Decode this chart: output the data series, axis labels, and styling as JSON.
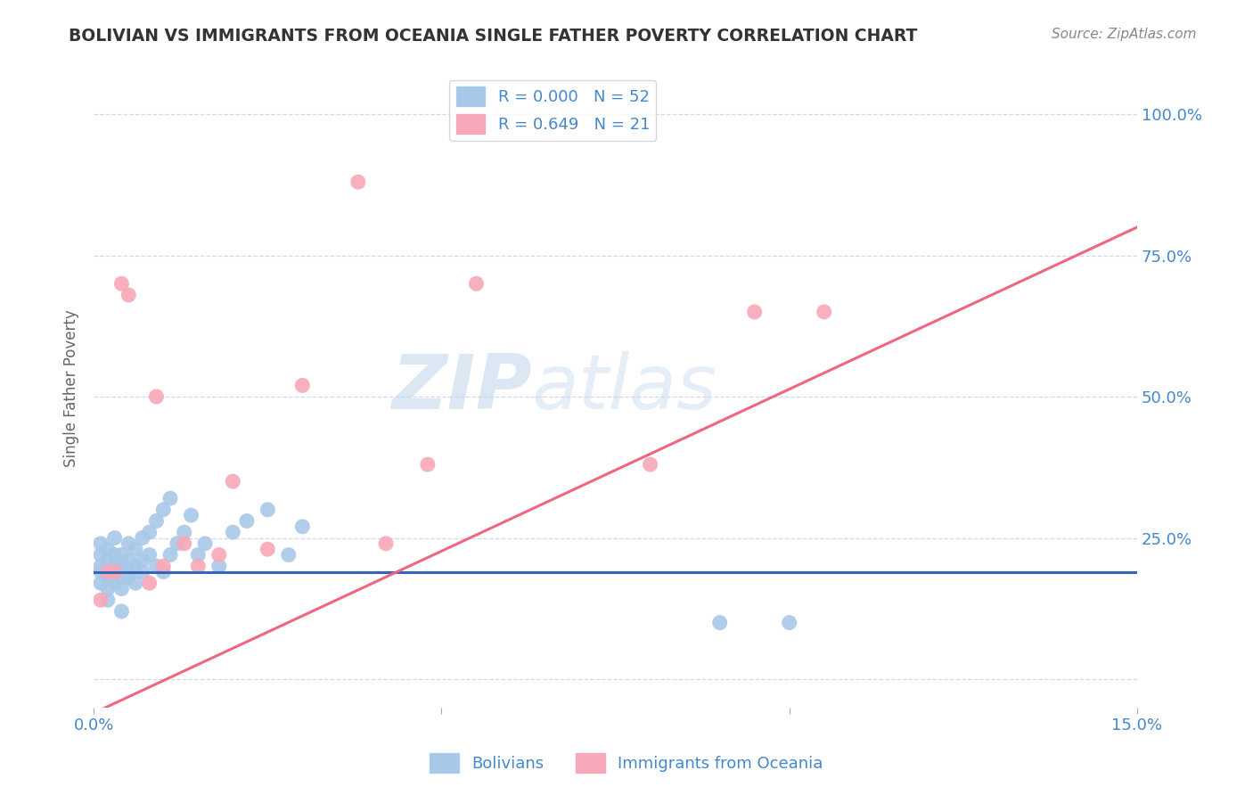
{
  "title": "BOLIVIAN VS IMMIGRANTS FROM OCEANIA SINGLE FATHER POVERTY CORRELATION CHART",
  "source": "Source: ZipAtlas.com",
  "ylabel": "Single Father Poverty",
  "xlim": [
    0.0,
    0.15
  ],
  "ylim": [
    -0.05,
    1.08
  ],
  "xticks": [
    0.0,
    0.05,
    0.1,
    0.15
  ],
  "xticklabels": [
    "0.0%",
    "",
    "",
    "15.0%"
  ],
  "yticks": [
    0.0,
    0.25,
    0.5,
    0.75,
    1.0
  ],
  "yticklabels": [
    "",
    "25.0%",
    "50.0%",
    "75.0%",
    "100.0%"
  ],
  "grid_color": "#d0d8f0",
  "background_color": "#ffffff",
  "watermark_text": "ZIPatlas",
  "legend_r1": "R = 0.000",
  "legend_n1": "N = 52",
  "legend_r2": "R = 0.649",
  "legend_n2": "N = 21",
  "bolivians_color": "#a8c8e8",
  "oceania_color": "#f8a8b8",
  "line_blue": "#3366bb",
  "line_pink": "#ee6680",
  "axis_color": "#4488cc",
  "title_color": "#333333",
  "source_color": "#888888",
  "blue_line_y": 0.19,
  "bolivians_x": [
    0.001,
    0.001,
    0.001,
    0.001,
    0.001,
    0.002,
    0.002,
    0.002,
    0.002,
    0.002,
    0.002,
    0.003,
    0.003,
    0.003,
    0.003,
    0.003,
    0.004,
    0.004,
    0.004,
    0.004,
    0.004,
    0.005,
    0.005,
    0.005,
    0.005,
    0.006,
    0.006,
    0.006,
    0.007,
    0.007,
    0.007,
    0.008,
    0.008,
    0.009,
    0.009,
    0.01,
    0.01,
    0.011,
    0.011,
    0.012,
    0.013,
    0.014,
    0.015,
    0.016,
    0.018,
    0.02,
    0.022,
    0.025,
    0.028,
    0.03,
    0.09,
    0.1
  ],
  "bolivians_y": [
    0.17,
    0.19,
    0.2,
    0.22,
    0.24,
    0.16,
    0.18,
    0.19,
    0.21,
    0.23,
    0.14,
    0.17,
    0.19,
    0.2,
    0.22,
    0.25,
    0.18,
    0.2,
    0.22,
    0.16,
    0.12,
    0.19,
    0.21,
    0.24,
    0.18,
    0.2,
    0.23,
    0.17,
    0.21,
    0.19,
    0.25,
    0.22,
    0.26,
    0.2,
    0.28,
    0.19,
    0.3,
    0.22,
    0.32,
    0.24,
    0.26,
    0.29,
    0.22,
    0.24,
    0.2,
    0.26,
    0.28,
    0.3,
    0.22,
    0.27,
    0.1,
    0.1
  ],
  "oceania_x": [
    0.001,
    0.002,
    0.003,
    0.004,
    0.005,
    0.008,
    0.009,
    0.01,
    0.013,
    0.015,
    0.018,
    0.02,
    0.025,
    0.03,
    0.038,
    0.042,
    0.048,
    0.055,
    0.08,
    0.095,
    0.105
  ],
  "oceania_y": [
    0.14,
    0.19,
    0.19,
    0.7,
    0.68,
    0.17,
    0.5,
    0.2,
    0.24,
    0.2,
    0.22,
    0.35,
    0.23,
    0.52,
    0.88,
    0.24,
    0.38,
    0.7,
    0.38,
    0.65,
    0.65
  ],
  "pink_line_x0": 0.0,
  "pink_line_y0": -0.06,
  "pink_line_x1": 0.15,
  "pink_line_y1": 0.8
}
